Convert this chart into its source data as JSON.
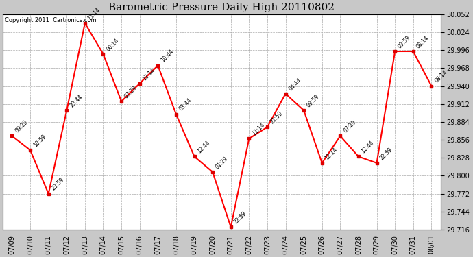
{
  "title": "Barometric Pressure Daily High 20110802",
  "copyright": "Copyright 2011  Cartronics.com",
  "background_color": "#c8c8c8",
  "plot_bg_color": "#ffffff",
  "line_color": "#ff0000",
  "marker_color": "#dd0000",
  "grid_color": "#aaaaaa",
  "x_labels": [
    "07/09",
    "07/10",
    "07/11",
    "07/12",
    "07/13",
    "07/14",
    "07/15",
    "07/16",
    "07/17",
    "07/18",
    "07/19",
    "07/20",
    "07/21",
    "07/22",
    "07/23",
    "07/24",
    "07/25",
    "07/26",
    "07/27",
    "07/28",
    "07/29",
    "07/30",
    "07/31",
    "08/01"
  ],
  "y_values": [
    29.862,
    29.84,
    29.772,
    29.902,
    30.038,
    29.99,
    29.916,
    29.944,
    29.972,
    29.896,
    29.83,
    29.806,
    29.72,
    29.858,
    29.876,
    29.928,
    29.902,
    29.82,
    29.862,
    29.83,
    29.82,
    29.994,
    29.994,
    29.94
  ],
  "point_labels": [
    "09:29",
    "10:59",
    "23:59",
    "23:44",
    "11:14",
    "00:14",
    "07:29",
    "12:14",
    "10:44",
    "03:44",
    "12:44",
    "01:29",
    "22:59",
    "11:14",
    "21:59",
    "04:44",
    "09:59",
    "12:14",
    "07:29",
    "12:44",
    "22:59",
    "09:59",
    "08:14",
    "08:14"
  ],
  "ylim_min": 29.716,
  "ylim_max": 30.052,
  "yticks": [
    29.716,
    29.744,
    29.772,
    29.8,
    29.828,
    29.856,
    29.884,
    29.912,
    29.94,
    29.968,
    29.996,
    30.024,
    30.052
  ]
}
